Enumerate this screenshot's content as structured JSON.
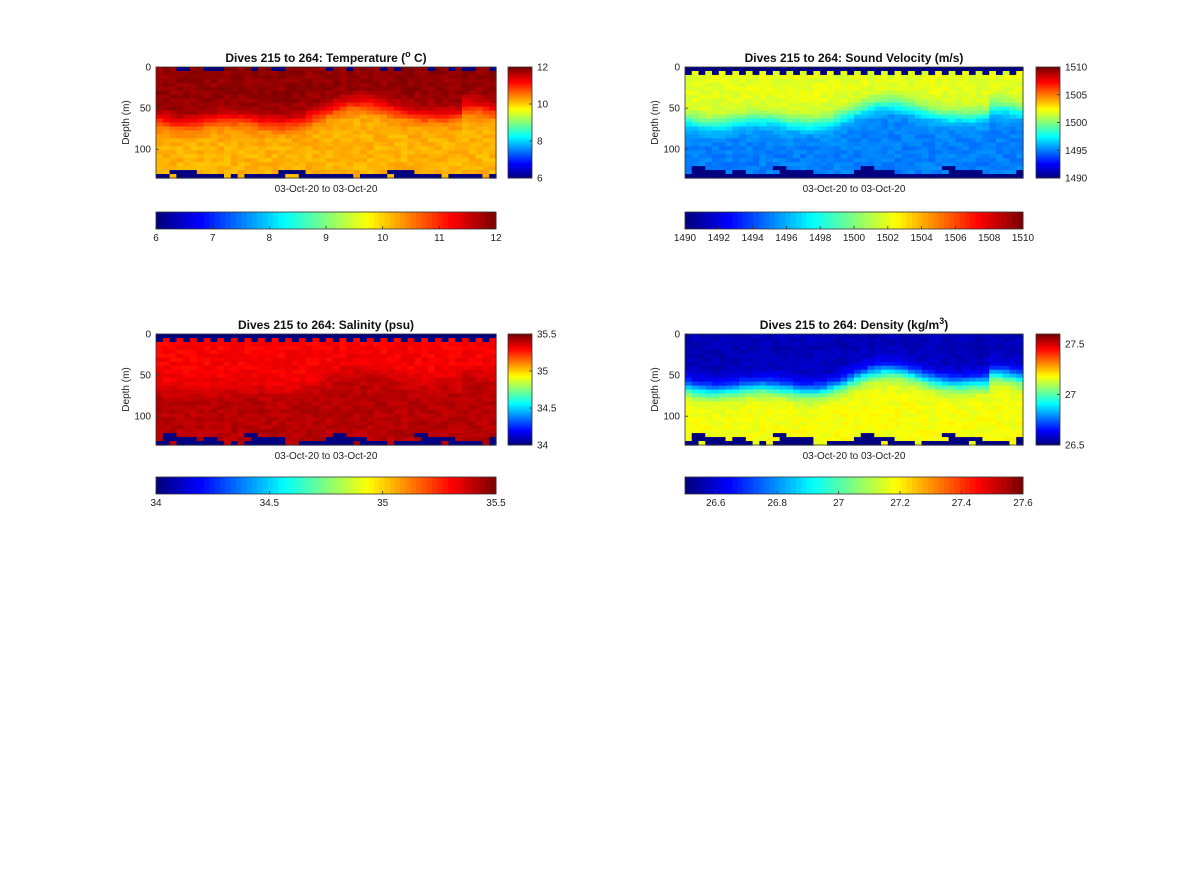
{
  "figure": {
    "background": "#ffffff",
    "colormap": "jet"
  },
  "chart_data": [
    {
      "type": "heatmap",
      "variable": "temperature",
      "title_main": "Dives 215 to 264: Temperature (",
      "title_sup": "o",
      "title_tail": " C)",
      "ylabel": "Depth (m)",
      "xlabel": "03-Oct-20 to 03-Oct-20",
      "dives": [
        215,
        264
      ],
      "depth_range": [
        0,
        135
      ],
      "depth_ticks": [
        0,
        50,
        100
      ],
      "yaxis_reversed": true,
      "clim": [
        6,
        12
      ],
      "side_colorbar_ticks": [
        "6",
        "8",
        "10",
        "12"
      ],
      "bottom_colorbar_ticks": [
        "6",
        "7",
        "8",
        "9",
        "10",
        "11",
        "12"
      ],
      "pattern": {
        "surface_value": 12,
        "mixed_layer_value": 11.9,
        "deep_value": 10.2,
        "top_gap": "sparse",
        "bottom_gap": "mostly-bottom"
      }
    },
    {
      "type": "heatmap",
      "variable": "sound_velocity",
      "title_main": "Dives 215 to 264: Sound Velocity (m/s)",
      "title_sup": "",
      "title_tail": "",
      "ylabel": "Depth (m)",
      "xlabel": "03-Oct-20 to 03-Oct-20",
      "dives": [
        215,
        264
      ],
      "depth_range": [
        0,
        135
      ],
      "depth_ticks": [
        0,
        50,
        100
      ],
      "yaxis_reversed": true,
      "clim": [
        1490,
        1510
      ],
      "side_colorbar_ticks": [
        "1490",
        "1495",
        "1500",
        "1505",
        "1510"
      ],
      "bottom_colorbar_ticks": [
        "1490",
        "1492",
        "1494",
        "1496",
        "1498",
        "1500",
        "1502",
        "1504",
        "1506",
        "1508",
        "1510"
      ],
      "pattern": {
        "surface_value": 1502.5,
        "mixed_layer_value": 1502,
        "deep_value": 1495,
        "top_gap": "comb",
        "bottom_gap": "dark-ridge"
      }
    },
    {
      "type": "heatmap",
      "variable": "salinity",
      "title_main": "Dives 215 to 264: Salinity (psu)",
      "title_sup": "",
      "title_tail": "",
      "ylabel": "Depth (m)",
      "xlabel": "03-Oct-20 to 03-Oct-20",
      "dives": [
        215,
        264
      ],
      "depth_range": [
        0,
        135
      ],
      "depth_ticks": [
        0,
        50,
        100
      ],
      "yaxis_reversed": true,
      "clim": [
        34,
        35.5
      ],
      "side_colorbar_ticks": [
        "34",
        "34.5",
        "35",
        "35.5"
      ],
      "bottom_colorbar_ticks": [
        "34",
        "34.5",
        "35",
        "35.5"
      ],
      "pattern": {
        "surface_value": 35.25,
        "mixed_layer_value": 35.32,
        "deep_value": 35.42,
        "top_gap": "comb",
        "bottom_gap": "ridge"
      }
    },
    {
      "type": "heatmap",
      "variable": "density",
      "title_main": "Dives 215 to 264: Density (kg/m",
      "title_sup": "3",
      "title_tail": ")",
      "ylabel": "Depth (m)",
      "xlabel": "03-Oct-20 to 03-Oct-20",
      "dives": [
        215,
        264
      ],
      "depth_range": [
        0,
        135
      ],
      "depth_ticks": [
        0,
        50,
        100
      ],
      "yaxis_reversed": true,
      "clim": [
        26.5,
        27.6
      ],
      "side_colorbar_ticks": [
        "26.5",
        "27",
        "27.5"
      ],
      "side_colorbar_values": [
        26.5,
        27,
        27.5
      ],
      "bottom_colorbar_ticks": [
        "26.6",
        "26.8",
        "27",
        "27.2",
        "27.4",
        "27.6"
      ],
      "bottom_colorbar_values": [
        26.6,
        26.8,
        27,
        27.2,
        27.4,
        27.6
      ],
      "pattern": {
        "surface_value": 26.55,
        "mixed_layer_value": 26.56,
        "deep_value": 27.18,
        "top_gap": "none",
        "bottom_gap": "ridge"
      }
    }
  ]
}
